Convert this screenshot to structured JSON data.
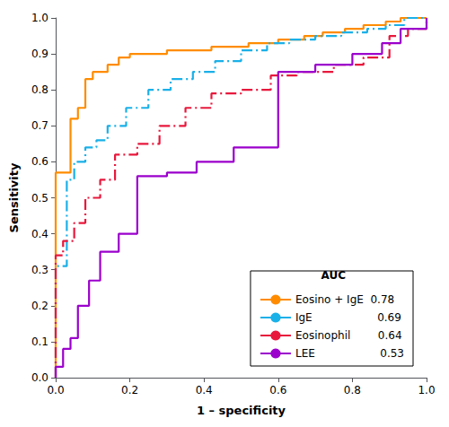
{
  "chart_data": {
    "type": "line",
    "xlabel": "1 – specificity",
    "ylabel": "Sensitivity",
    "xlim": [
      0.0,
      1.0
    ],
    "ylim": [
      0.0,
      1.0
    ],
    "xticks": [
      {
        "value": 0.0,
        "label": "0.0"
      },
      0.2,
      0.4,
      0.6,
      0.8,
      {
        "value": 1.0,
        "label": "1.0"
      }
    ],
    "yticks": [
      {
        "value": 0.0,
        "label": "0.0"
      },
      0.1,
      0.2,
      0.3,
      0.4,
      0.5,
      0.6,
      0.7,
      0.8,
      0.9,
      {
        "value": 1.0,
        "label": "1.0"
      }
    ],
    "grid": false,
    "legend": "lower right",
    "legend_title": "AUC",
    "series": [
      {
        "name": "Eosino + IgE  0.78",
        "color": "#ff8c00",
        "line_style": "solid",
        "x": [
          0.0,
          0.0,
          0.04,
          0.04,
          0.06,
          0.06,
          0.08,
          0.08,
          0.1,
          0.1,
          0.14,
          0.14,
          0.17,
          0.17,
          0.2,
          0.2,
          0.3,
          0.3,
          0.42,
          0.42,
          0.52,
          0.52,
          0.6,
          0.6,
          0.67,
          0.67,
          0.72,
          0.72,
          0.78,
          0.78,
          0.83,
          0.83,
          0.89,
          0.89,
          0.93,
          0.93,
          0.97,
          0.97,
          1.0
        ],
        "values": [
          0.0,
          0.57,
          0.57,
          0.72,
          0.72,
          0.75,
          0.75,
          0.83,
          0.83,
          0.85,
          0.85,
          0.87,
          0.87,
          0.89,
          0.89,
          0.9,
          0.9,
          0.91,
          0.91,
          0.92,
          0.92,
          0.93,
          0.93,
          0.94,
          0.94,
          0.95,
          0.95,
          0.96,
          0.96,
          0.97,
          0.97,
          0.98,
          0.98,
          0.99,
          0.99,
          1.0,
          1.0,
          1.0,
          1.0
        ]
      },
      {
        "name": "IgE                   0.69",
        "color": "#1ab0e8",
        "line_style": "dashdot",
        "x": [
          0.0,
          0.0,
          0.03,
          0.03,
          0.05,
          0.05,
          0.08,
          0.08,
          0.11,
          0.11,
          0.14,
          0.14,
          0.19,
          0.19,
          0.25,
          0.25,
          0.31,
          0.31,
          0.37,
          0.37,
          0.43,
          0.43,
          0.5,
          0.5,
          0.57,
          0.57,
          0.63,
          0.63,
          0.7,
          0.7,
          0.77,
          0.77,
          0.84,
          0.84,
          0.89,
          0.89,
          0.94,
          0.94,
          1.0
        ],
        "values": [
          0.0,
          0.31,
          0.31,
          0.55,
          0.55,
          0.6,
          0.6,
          0.64,
          0.64,
          0.66,
          0.66,
          0.7,
          0.7,
          0.75,
          0.75,
          0.8,
          0.8,
          0.83,
          0.83,
          0.85,
          0.85,
          0.88,
          0.88,
          0.91,
          0.91,
          0.93,
          0.93,
          0.94,
          0.94,
          0.95,
          0.95,
          0.96,
          0.96,
          0.97,
          0.97,
          0.98,
          0.98,
          1.0,
          1.0
        ]
      },
      {
        "name": "Eosinophil        0.64",
        "color": "#e8183c",
        "line_style": "dashdot",
        "x": [
          0.0,
          0.0,
          0.02,
          0.02,
          0.05,
          0.05,
          0.08,
          0.08,
          0.12,
          0.12,
          0.16,
          0.16,
          0.22,
          0.22,
          0.28,
          0.28,
          0.35,
          0.35,
          0.42,
          0.42,
          0.5,
          0.5,
          0.58,
          0.58,
          0.65,
          0.65,
          0.75,
          0.75,
          0.83,
          0.83,
          0.9,
          0.9,
          0.95,
          0.95,
          1.0
        ],
        "values": [
          0.0,
          0.34,
          0.34,
          0.38,
          0.38,
          0.43,
          0.43,
          0.5,
          0.5,
          0.55,
          0.55,
          0.62,
          0.62,
          0.65,
          0.65,
          0.7,
          0.7,
          0.75,
          0.75,
          0.79,
          0.79,
          0.8,
          0.8,
          0.84,
          0.84,
          0.85,
          0.85,
          0.87,
          0.87,
          0.89,
          0.89,
          0.95,
          0.95,
          0.97,
          1.0
        ]
      },
      {
        "name": "LEE                   0.53",
        "color": "#9b00cc",
        "line_style": "solid",
        "x": [
          0.0,
          0.0,
          0.02,
          0.02,
          0.04,
          0.04,
          0.06,
          0.06,
          0.09,
          0.09,
          0.12,
          0.12,
          0.17,
          0.17,
          0.22,
          0.22,
          0.3,
          0.3,
          0.38,
          0.38,
          0.48,
          0.48,
          0.6,
          0.6,
          0.7,
          0.7,
          0.8,
          0.8,
          0.88,
          0.88,
          0.93,
          0.93,
          1.0
        ],
        "values": [
          0.0,
          0.03,
          0.03,
          0.08,
          0.08,
          0.11,
          0.11,
          0.2,
          0.2,
          0.27,
          0.27,
          0.35,
          0.35,
          0.4,
          0.4,
          0.56,
          0.56,
          0.57,
          0.57,
          0.6,
          0.6,
          0.64,
          0.64,
          0.85,
          0.85,
          0.87,
          0.87,
          0.9,
          0.9,
          0.93,
          0.93,
          0.97,
          1.0
        ]
      }
    ]
  }
}
